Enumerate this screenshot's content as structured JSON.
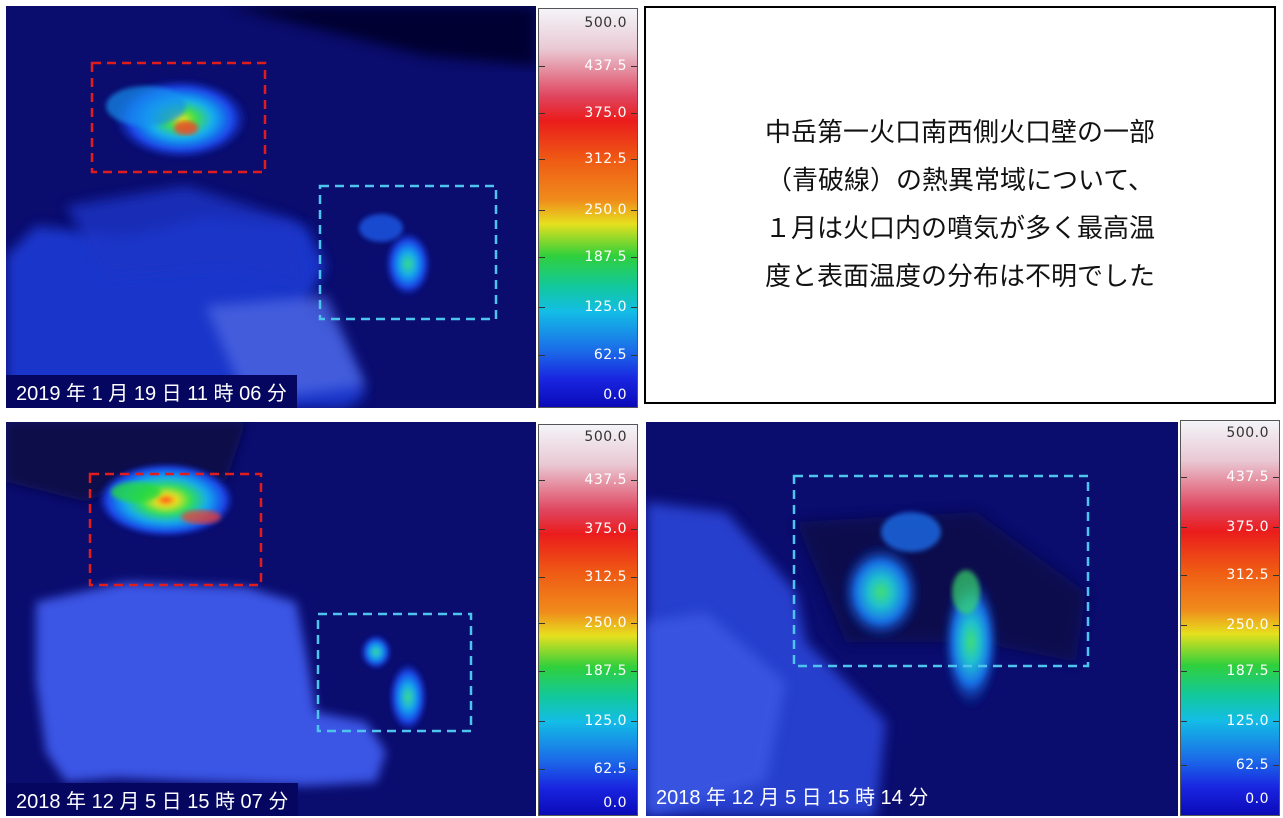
{
  "colors": {
    "background": "#0a0c6e",
    "red_box": "#e01c1c",
    "blue_box": "#4cc4ee"
  },
  "scale": {
    "ticks": [
      "500.0",
      "437.5",
      "375.0",
      "312.5",
      "250.0",
      "187.5",
      "125.0",
      "62.5",
      "0.0"
    ]
  },
  "annotation": {
    "lines": [
      "中岳第一火口南西側火口壁の一部",
      "（青破線）の熱異常域について、",
      "１月は火口内の噴気が多く最高温",
      "度と表面温度の分布は不明でした"
    ]
  },
  "panels": {
    "top_left": {
      "timestamp": "2019 年 1 月 19 日 11 時 06 分"
    },
    "bottom_left": {
      "timestamp": "2018 年 12 月 5 日 15 時 07 分"
    },
    "bottom_right": {
      "timestamp": "2018 年 12 月 5 日 15 時 14 分"
    }
  }
}
